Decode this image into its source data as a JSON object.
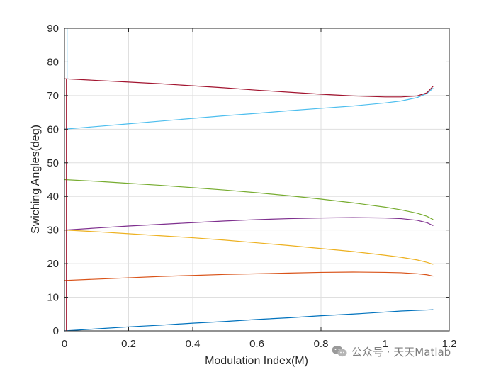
{
  "chart_data": {
    "type": "line",
    "title": "",
    "xlabel": "Modulation Index(M)",
    "ylabel": "Swiching Angles(deg)",
    "xlim": [
      0,
      1.2
    ],
    "ylim": [
      0,
      90
    ],
    "xticks": [
      0,
      0.2,
      0.4,
      0.6,
      0.8,
      1,
      1.2
    ],
    "xtick_labels": [
      "0",
      "0.2",
      "0.4",
      "0.6",
      "0.8",
      "1",
      "1.2"
    ],
    "yticks": [
      0,
      10,
      20,
      30,
      40,
      50,
      60,
      70,
      80,
      90
    ],
    "ytick_labels": [
      "0",
      "10",
      "20",
      "30",
      "40",
      "50",
      "60",
      "70",
      "80",
      "90"
    ],
    "grid": true,
    "legend": "none",
    "x": [
      0,
      0.1,
      0.2,
      0.3,
      0.4,
      0.5,
      0.6,
      0.7,
      0.8,
      0.9,
      1.0,
      1.05,
      1.1,
      1.13,
      1.15
    ],
    "series": [
      {
        "color": "#0072BD",
        "values": [
          0,
          0.6,
          1.2,
          1.7,
          2.3,
          2.8,
          3.4,
          3.9,
          4.5,
          5.0,
          5.6,
          5.9,
          6.1,
          6.2,
          6.3
        ]
      },
      {
        "color": "#D95319",
        "values": [
          15,
          15.4,
          15.8,
          16.2,
          16.5,
          16.8,
          17.0,
          17.2,
          17.4,
          17.5,
          17.4,
          17.3,
          17.0,
          16.7,
          16.3
        ]
      },
      {
        "color": "#EDB120",
        "values": [
          30,
          29.5,
          28.9,
          28.3,
          27.7,
          27.0,
          26.2,
          25.4,
          24.5,
          23.6,
          22.5,
          21.9,
          21.1,
          20.4,
          19.8
        ]
      },
      {
        "color": "#7E2F8E",
        "values": [
          30,
          30.6,
          31.2,
          31.7,
          32.2,
          32.7,
          33.1,
          33.4,
          33.6,
          33.7,
          33.6,
          33.4,
          32.9,
          32.2,
          31.3
        ]
      },
      {
        "color": "#77AC30",
        "values": [
          45,
          44.5,
          43.9,
          43.3,
          42.6,
          41.9,
          41.1,
          40.2,
          39.2,
          38.1,
          36.8,
          36.0,
          35.0,
          34.1,
          33.1
        ]
      },
      {
        "color": "#4DBEEE",
        "values": [
          60,
          60.8,
          61.6,
          62.4,
          63.2,
          64.0,
          64.7,
          65.5,
          66.2,
          66.9,
          67.8,
          68.4,
          69.4,
          70.6,
          72.2
        ]
      },
      {
        "color": "#A2142F",
        "values": [
          75,
          74.5,
          74.0,
          73.5,
          72.9,
          72.3,
          71.6,
          71.0,
          70.4,
          69.9,
          69.6,
          69.6,
          69.9,
          70.8,
          72.8
        ]
      }
    ],
    "extra_segments": [
      {
        "color": "#4DBEEE",
        "x": [
          0.008,
          0.008
        ],
        "y": [
          90,
          75
        ]
      },
      {
        "color": "#A2142F",
        "x": [
          0.006,
          0.006
        ],
        "y": [
          75,
          0
        ]
      }
    ]
  },
  "watermark": {
    "icon": "wechat-icon",
    "text": "公众号 · 天天Matlab"
  }
}
